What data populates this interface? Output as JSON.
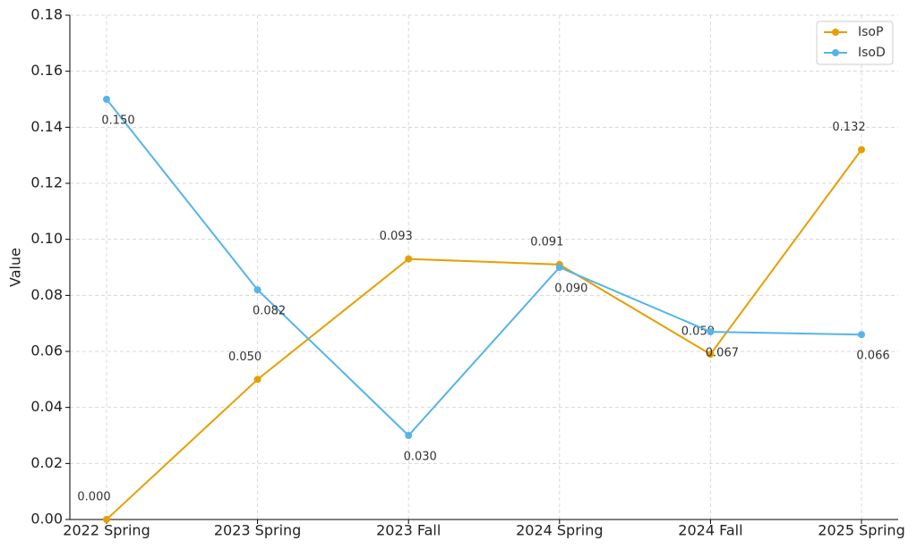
{
  "chart_data": {
    "type": "line",
    "y_label": "Value",
    "categories": [
      "2022 Spring",
      "2023 Spring",
      "2023 Fall",
      "2024 Spring",
      "2024 Fall",
      "2025 Spring"
    ],
    "series": [
      {
        "name": "IsoP",
        "color": "#e69f00",
        "values": [
          0.0,
          0.05,
          0.093,
          0.091,
          0.059,
          0.132
        ],
        "value_labels": [
          "0.000",
          "0.050",
          "0.093",
          "0.091",
          "0.059",
          "0.132"
        ]
      },
      {
        "name": "IsoD",
        "color": "#56b4e9",
        "values": [
          0.15,
          0.082,
          0.03,
          0.09,
          0.067,
          0.066
        ],
        "value_labels": [
          "0.150",
          "0.082",
          "0.030",
          "0.090",
          "0.067",
          "0.066"
        ]
      }
    ],
    "ylim": [
      0,
      0.18
    ],
    "yticks": [
      {
        "value": 0,
        "label": "0.00"
      },
      {
        "value": 0.02,
        "label": "0.02"
      },
      {
        "value": 0.04,
        "label": "0.04"
      },
      {
        "value": 0.06,
        "label": "0.06"
      },
      {
        "value": 0.08,
        "label": "0.08"
      },
      {
        "value": 0.1,
        "label": "0.10"
      },
      {
        "value": 0.12,
        "label": "0.12"
      },
      {
        "value": 0.14,
        "label": "0.14"
      },
      {
        "value": 0.16,
        "label": "0.16"
      },
      {
        "value": 0.18,
        "label": "0.18"
      }
    ],
    "grid": true,
    "legend": "upper right"
  }
}
